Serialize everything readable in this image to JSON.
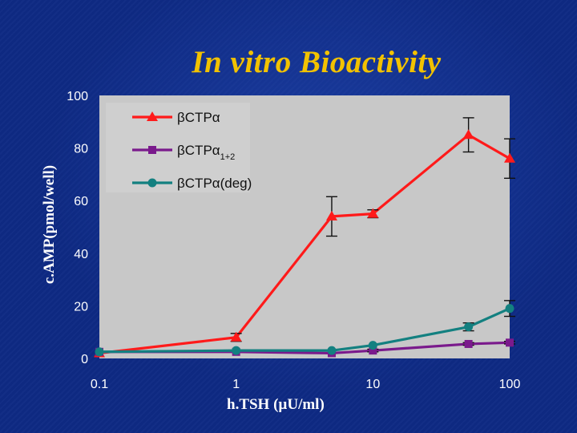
{
  "slide": {
    "title": "In vitro Bioactivity"
  },
  "chart_data": {
    "type": "line",
    "title": "In vitro Bioactivity",
    "xlabel": "h.TSH (µU/ml)",
    "ylabel": "c.AMP(pmol/well)",
    "x_scale": "log",
    "xlim": [
      0.1,
      100
    ],
    "ylim": [
      0,
      100
    ],
    "x_ticks": [
      "0.1",
      "1",
      "10",
      "100"
    ],
    "y_ticks": [
      "0",
      "20",
      "40",
      "60",
      "80",
      "100"
    ],
    "grid": false,
    "legend_position": "top-left",
    "plot_background": "#c8c8c8",
    "series": [
      {
        "name": "βCTPα",
        "name_main": "βCTPα",
        "name_sub": "",
        "color": "#ff1a1a",
        "marker": "triangle",
        "x": [
          0.1,
          1,
          5,
          10,
          50,
          100
        ],
        "y": [
          2,
          8,
          54,
          55,
          85,
          76
        ],
        "error": [
          0,
          1.5,
          7.5,
          1.5,
          6.5,
          7.5
        ]
      },
      {
        "name": "βCTPα1+2",
        "name_main": "βCTPα",
        "name_sub": "1+2",
        "color": "#7a1a8c",
        "marker": "square",
        "x": [
          0.1,
          1,
          5,
          10,
          50,
          100
        ],
        "y": [
          2.5,
          2.5,
          2,
          3,
          5.5,
          6
        ],
        "error": [
          0,
          0,
          0,
          0.5,
          0.5,
          0.5
        ]
      },
      {
        "name": "βCTPα(deg)",
        "name_main": "βCTPα(deg)",
        "name_sub": "",
        "color": "#138080",
        "marker": "circle",
        "x": [
          0.1,
          1,
          5,
          10,
          50,
          100
        ],
        "y": [
          2.5,
          3,
          3,
          5,
          12,
          19
        ],
        "error": [
          0,
          0,
          0,
          0,
          1.5,
          3
        ]
      }
    ]
  }
}
